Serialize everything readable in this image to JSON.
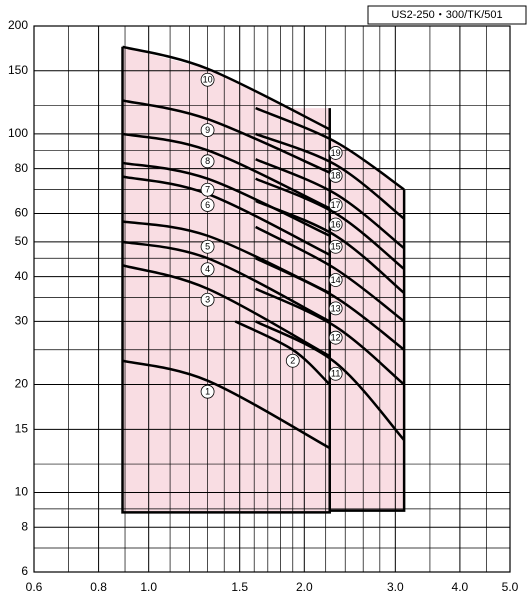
{
  "chart_data": {
    "type": "line",
    "title": "US2-250・300/TK/501",
    "log_x": true,
    "log_y": true,
    "grid": true,
    "xlim": [
      0.6,
      5.0
    ],
    "ylim": [
      6,
      200
    ],
    "xticks": [
      0.6,
      0.8,
      {
        "value": 1,
        "label": "1.0"
      },
      1.5,
      {
        "value": 2,
        "label": "2.0"
      },
      {
        "value": 3,
        "label": "3.0"
      },
      {
        "value": 4,
        "label": "4.0"
      },
      {
        "value": 5,
        "label": "5.0"
      }
    ],
    "yticks": [
      6,
      8,
      10,
      15,
      20,
      30,
      40,
      50,
      60,
      80,
      100,
      150,
      200
    ],
    "xminor": [
      0.7,
      0.9,
      1.1,
      1.2,
      1.3,
      1.4,
      1.6,
      1.7,
      1.8,
      1.9,
      2.2,
      2.4,
      2.6,
      2.8,
      3.5,
      4.5
    ],
    "yminor": [
      7,
      9,
      12,
      25,
      35,
      45,
      70,
      90,
      120
    ],
    "range_color": "#f9dde3",
    "ranges": [
      {
        "x": [
          0.89,
          2.24
        ],
        "floor": 8.8,
        "series": 9
      },
      {
        "x": [
          2.24,
          3.12
        ],
        "floor": 8.9,
        "series": 18
      }
    ],
    "series": [
      {
        "name": "1",
        "color": "#000",
        "x": [
          0.89,
          1.3,
          2.24
        ],
        "values": [
          23.3,
          20.5,
          13.3
        ]
      },
      {
        "name": "2",
        "color": "#000",
        "x": [
          1.47,
          1.9,
          2.24
        ],
        "values": [
          30,
          25,
          20
        ]
      },
      {
        "name": "3",
        "color": "#000",
        "x": [
          0.89,
          1.3,
          2.24
        ],
        "values": [
          43,
          37,
          24
        ]
      },
      {
        "name": "4",
        "color": "#000",
        "x": [
          0.89,
          1.3,
          2.24
        ],
        "values": [
          50,
          45,
          30
        ]
      },
      {
        "name": "5",
        "color": "#000",
        "x": [
          0.89,
          1.3,
          2.24
        ],
        "values": [
          57,
          52,
          36
        ]
      },
      {
        "name": "6",
        "color": "#000",
        "x": [
          0.89,
          1.3,
          2.24
        ],
        "values": [
          76,
          68,
          46
        ]
      },
      {
        "name": "7",
        "color": "#000",
        "x": [
          0.89,
          1.3,
          2.24
        ],
        "values": [
          83,
          75,
          52
        ]
      },
      {
        "name": "8",
        "color": "#000",
        "x": [
          0.89,
          1.3,
          2.24
        ],
        "values": [
          100,
          90,
          62
        ]
      },
      {
        "name": "9",
        "color": "#000",
        "x": [
          0.89,
          1.3,
          2.24
        ],
        "values": [
          124,
          110,
          78
        ]
      },
      {
        "name": "10",
        "color": "#000",
        "x": [
          0.89,
          1.3,
          2.24
        ],
        "values": [
          175,
          152,
          103
        ]
      },
      {
        "name": "11",
        "color": "#000",
        "x": [
          1.61,
          2.3,
          3.12
        ],
        "values": [
          30,
          23,
          14
        ]
      },
      {
        "name": "12",
        "color": "#000",
        "x": [
          1.61,
          2.3,
          3.12
        ],
        "values": [
          37,
          29,
          20
        ]
      },
      {
        "name": "13",
        "color": "#000",
        "x": [
          1.61,
          2.3,
          3.12
        ],
        "values": [
          45,
          35,
          25
        ]
      },
      {
        "name": "14",
        "color": "#000",
        "x": [
          1.61,
          2.3,
          3.12
        ],
        "values": [
          55,
          42,
          30
        ]
      },
      {
        "name": "15",
        "color": "#000",
        "x": [
          1.61,
          2.3,
          3.12
        ],
        "values": [
          65,
          52,
          36
        ]
      },
      {
        "name": "16",
        "color": "#000",
        "x": [
          1.61,
          2.3,
          3.12
        ],
        "values": [
          75,
          60,
          42
        ]
      },
      {
        "name": "17",
        "color": "#000",
        "x": [
          1.61,
          2.3,
          3.12
        ],
        "values": [
          85,
          68,
          48
        ]
      },
      {
        "name": "18",
        "color": "#000",
        "x": [
          1.61,
          2.3,
          3.12
        ],
        "values": [
          100,
          82,
          58
        ]
      },
      {
        "name": "19",
        "color": "#000",
        "x": [
          1.61,
          2.3,
          3.12
        ],
        "values": [
          118,
          95,
          70
        ]
      }
    ]
  }
}
